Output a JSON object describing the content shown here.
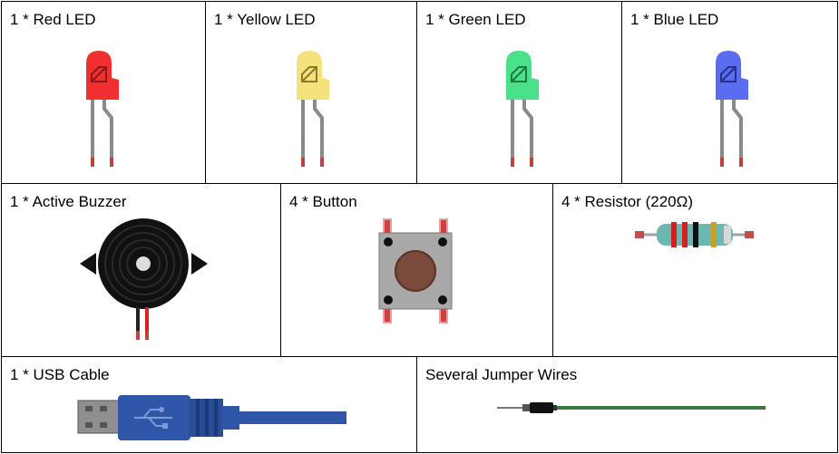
{
  "components": {
    "red_led": {
      "label": "1 * Red LED",
      "color": "#f03030"
    },
    "yellow_led": {
      "label": "1 * Yellow LED",
      "color": "#f5e27a"
    },
    "green_led": {
      "label": "1 * Green LED",
      "color": "#49e18a"
    },
    "blue_led": {
      "label": "1 * Blue LED",
      "color": "#5a6cf0"
    },
    "active_buzzer": {
      "label": "1 * Active Buzzer"
    },
    "button": {
      "label": "4 * Button"
    },
    "resistor": {
      "label": "4 * Resistor (220Ω)"
    },
    "usb_cable": {
      "label": "1 * USB Cable",
      "color": "#2f56a8"
    },
    "jumper_wires": {
      "label": "Several Jumper Wires",
      "color": "#3b7a3f"
    }
  }
}
